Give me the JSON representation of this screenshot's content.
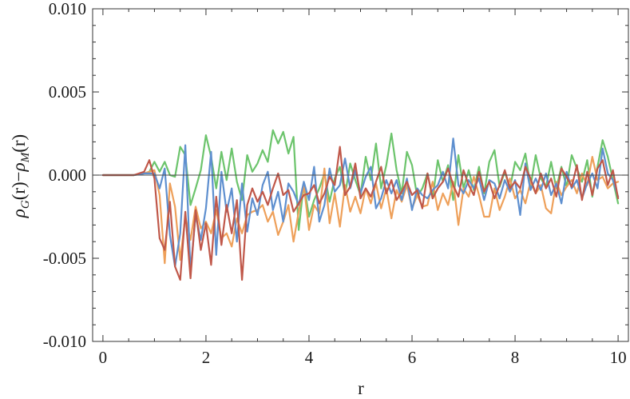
{
  "chart_data": {
    "type": "line",
    "xlabel": "r",
    "ylabel": {
      "rho": "ρ",
      "sub1": "G",
      "arg1": "(r)",
      "minus": "−",
      "sub2": "M",
      "arg2": "(r)"
    },
    "xlim": [
      -0.2,
      10.2
    ],
    "ylim": [
      -0.01,
      0.01
    ],
    "x_ticks": [
      "0",
      "2",
      "4",
      "6",
      "8",
      "10"
    ],
    "y_ticks": [
      "-0.010",
      "-0.005",
      "0.000",
      "0.005",
      "0.010"
    ],
    "zero_line": true,
    "grid": false,
    "legend": "none",
    "colors": {
      "blue": "#5e8fcf",
      "green": "#6cc46c",
      "orange": "#eea05a",
      "red": "#c0584a",
      "axis": "#333333",
      "zero": "#4a4a4a"
    },
    "series": [
      {
        "color": "#6cc46c",
        "x": [
          0,
          0.2,
          0.4,
          0.6,
          0.8,
          0.9,
          1.0,
          1.1,
          1.2,
          1.3,
          1.4,
          1.5,
          1.6,
          1.7,
          1.8,
          1.9,
          2.0,
          2.1,
          2.2,
          2.3,
          2.4,
          2.5,
          2.6,
          2.7,
          2.8,
          2.9,
          3.0,
          3.1,
          3.2,
          3.3,
          3.4,
          3.5,
          3.6,
          3.7,
          3.8,
          3.9,
          4.0,
          4.1,
          4.2,
          4.3,
          4.4,
          4.5,
          4.6,
          4.7,
          4.8,
          4.9,
          5.0,
          5.1,
          5.2,
          5.3,
          5.4,
          5.5,
          5.6,
          5.7,
          5.8,
          5.9,
          6.0,
          6.1,
          6.2,
          6.3,
          6.4,
          6.5,
          6.6,
          6.7,
          6.8,
          6.9,
          7.0,
          7.1,
          7.2,
          7.3,
          7.4,
          7.5,
          7.6,
          7.7,
          7.8,
          7.9,
          8.0,
          8.1,
          8.2,
          8.3,
          8.4,
          8.5,
          8.6,
          8.7,
          8.8,
          8.9,
          9.0,
          9.1,
          9.2,
          9.3,
          9.4,
          9.5,
          9.6,
          9.7,
          9.8,
          9.9,
          10.0
        ],
        "y": [
          0,
          0,
          0,
          0,
          0.0001,
          0.0002,
          0.0008,
          0.0002,
          0.0008,
          0,
          -0.0001,
          0.0017,
          0.0012,
          -0.0018,
          -0.0008,
          0.0003,
          0.0024,
          0.0011,
          -0.0008,
          0.0014,
          -0.0003,
          0.0016,
          -0.0004,
          -0.0015,
          0.0012,
          0.0002,
          0.0007,
          0.0015,
          0.0008,
          0.0027,
          0.0019,
          0.0026,
          0.0013,
          0.0023,
          -0.0033,
          -0.0005,
          -0.0025,
          -0.0015,
          -0.0008,
          0.0001,
          -0.0016,
          -0.0002,
          0.0005,
          -0.0012,
          0.0007,
          -0.0003,
          -0.0012,
          0.0011,
          -0.0003,
          0.0019,
          -0.0008,
          0.0006,
          0.0025,
          0.0003,
          -0.0011,
          0.0014,
          0.0006,
          -0.0013,
          -0.0008,
          0.0001,
          -0.0014,
          0.0009,
          -0.0004,
          0.0006,
          -0.0015,
          0.0012,
          -0.0008,
          0.0003,
          -0.0009,
          0.0005,
          -0.0011,
          0.0008,
          0.0015,
          -0.0007,
          0.0002,
          -0.0008,
          0.0008,
          0.0003,
          0.0013,
          -0.0007,
          0.0012,
          -0.0002,
          -0.0007,
          0.0008,
          -0.0008,
          0.0005,
          -0.0007,
          0.0012,
          0.0004,
          -0.0004,
          0.0009,
          -0.0013,
          0.0005,
          0.0021,
          0.0011,
          -0.0003,
          -0.0017
        ]
      },
      {
        "color": "#eea05a",
        "x": [
          0,
          0.2,
          0.4,
          0.6,
          0.8,
          0.9,
          1.0,
          1.1,
          1.2,
          1.3,
          1.4,
          1.5,
          1.6,
          1.7,
          1.8,
          1.9,
          2.0,
          2.1,
          2.2,
          2.3,
          2.4,
          2.5,
          2.6,
          2.7,
          2.8,
          2.9,
          3.0,
          3.1,
          3.2,
          3.3,
          3.4,
          3.5,
          3.6,
          3.7,
          3.8,
          3.9,
          4.0,
          4.1,
          4.2,
          4.3,
          4.4,
          4.5,
          4.6,
          4.7,
          4.8,
          4.9,
          5.0,
          5.1,
          5.2,
          5.3,
          5.4,
          5.5,
          5.6,
          5.7,
          5.8,
          5.9,
          6.0,
          6.1,
          6.2,
          6.3,
          6.4,
          6.5,
          6.6,
          6.7,
          6.8,
          6.9,
          7.0,
          7.1,
          7.2,
          7.3,
          7.4,
          7.5,
          7.6,
          7.7,
          7.8,
          7.9,
          8.0,
          8.1,
          8.2,
          8.3,
          8.4,
          8.5,
          8.6,
          8.7,
          8.8,
          8.9,
          9.0,
          9.1,
          9.2,
          9.3,
          9.4,
          9.5,
          9.6,
          9.7,
          9.8,
          9.9,
          10.0
        ],
        "y": [
          0,
          0,
          0,
          0,
          0.0001,
          0.0002,
          0.0003,
          -0.0012,
          -0.0053,
          -0.0005,
          -0.0019,
          -0.0051,
          -0.0025,
          -0.0039,
          -0.0019,
          -0.0032,
          -0.0028,
          -0.0035,
          -0.0021,
          -0.0038,
          -0.0035,
          -0.0043,
          -0.0026,
          -0.0035,
          -0.0024,
          -0.0022,
          -0.0021,
          -0.0018,
          -0.0028,
          -0.0022,
          -0.0036,
          -0.0028,
          -0.0018,
          -0.004,
          -0.0022,
          -0.0006,
          -0.0033,
          -0.0018,
          -0.0023,
          0.0004,
          -0.0029,
          -0.0011,
          -0.0031,
          -0.0006,
          -0.0022,
          -0.0013,
          -0.0023,
          -0.0008,
          -0.0017,
          -0.0005,
          -0.002,
          -0.0008,
          -0.0026,
          -0.0009,
          -0.0016,
          -0.0006,
          -0.002,
          -0.0012,
          -0.0019,
          -0.0018,
          -0.0004,
          -0.0021,
          -0.0011,
          -0.0018,
          -0.0004,
          -0.003,
          -0.0008,
          -0.0013,
          -0.0001,
          -0.0012,
          -0.0025,
          -0.0025,
          -0.0008,
          -0.0021,
          -0.0013,
          -0.0002,
          -0.0014,
          -0.0009,
          -0.0017,
          -0.0004,
          -0.0011,
          -0.0006,
          -0.002,
          -0.0023,
          -0.0004,
          -0.0012,
          -0.0007,
          -0.0003,
          -0.0011,
          0.0001,
          -0.0006,
          0.0011,
          -0.0003,
          -0.0001,
          -0.0008,
          -0.0005,
          -0.0004
        ]
      },
      {
        "color": "#5e8fcf",
        "x": [
          0,
          0.2,
          0.4,
          0.6,
          0.8,
          0.9,
          1.0,
          1.1,
          1.2,
          1.3,
          1.4,
          1.5,
          1.6,
          1.7,
          1.8,
          1.9,
          2.0,
          2.1,
          2.2,
          2.3,
          2.4,
          2.5,
          2.6,
          2.7,
          2.8,
          2.9,
          3.0,
          3.1,
          3.2,
          3.3,
          3.4,
          3.5,
          3.6,
          3.7,
          3.8,
          3.9,
          4.0,
          4.1,
          4.2,
          4.3,
          4.4,
          4.5,
          4.6,
          4.7,
          4.8,
          4.9,
          5.0,
          5.1,
          5.2,
          5.3,
          5.4,
          5.5,
          5.6,
          5.7,
          5.8,
          5.9,
          6.0,
          6.1,
          6.2,
          6.3,
          6.4,
          6.5,
          6.6,
          6.7,
          6.8,
          6.9,
          7.0,
          7.1,
          7.2,
          7.3,
          7.4,
          7.5,
          7.6,
          7.7,
          7.8,
          7.9,
          8.0,
          8.1,
          8.2,
          8.3,
          8.4,
          8.5,
          8.6,
          8.7,
          8.8,
          8.9,
          9.0,
          9.1,
          9.2,
          9.3,
          9.4,
          9.5,
          9.6,
          9.7,
          9.8,
          9.9,
          10.0
        ],
        "y": [
          0,
          0,
          0,
          0,
          0.0001,
          0.0001,
          0.0001,
          -0.0008,
          0.0004,
          -0.0036,
          -0.0055,
          -0.0035,
          0.0018,
          -0.0058,
          -0.0024,
          -0.0039,
          -0.002,
          0.0014,
          -0.0048,
          0.0002,
          -0.0022,
          -0.0008,
          -0.004,
          -0.0005,
          -0.0034,
          -0.0014,
          -0.0024,
          -0.0006,
          0.0002,
          -0.0021,
          -0.001,
          -0.0028,
          -0.0005,
          -0.001,
          -0.0018,
          -0.0004,
          -0.0015,
          0.0005,
          -0.0028,
          -0.0018,
          0.0004,
          -0.001,
          -0.0006,
          0.001,
          -0.0008,
          0.0003,
          -0.0011,
          -0.0001,
          0.0005,
          -0.002,
          -0.0014,
          -0.0003,
          -0.0011,
          -0.0003,
          -0.0015,
          -0.0002,
          -0.0021,
          -0.0008,
          -0.0012,
          -0.0014,
          -0.0009,
          -0.0006,
          0.0002,
          -0.0008,
          0.0022,
          -0.0006,
          -0.0011,
          -0.0003,
          -0.0008,
          -0.0002,
          -0.0015,
          -0.0003,
          -0.0005,
          -0.0014,
          -0.0003,
          -0.001,
          -0.0003,
          -0.0024,
          0.0007,
          -0.0009,
          -0.0002,
          -0.0009,
          0.0001,
          -0.0012,
          -0.0005,
          -0.0017,
          0.0002,
          -0.0008,
          -0.0003,
          -0.0014,
          -0.0005,
          0.0001,
          -0.0008,
          0.0016,
          0.0001,
          -0.0003,
          -0.0013
        ]
      },
      {
        "color": "#c0584a",
        "x": [
          0,
          0.2,
          0.4,
          0.6,
          0.8,
          0.9,
          1.0,
          1.1,
          1.2,
          1.3,
          1.4,
          1.5,
          1.6,
          1.7,
          1.8,
          1.9,
          2.0,
          2.1,
          2.2,
          2.3,
          2.4,
          2.5,
          2.6,
          2.7,
          2.8,
          2.9,
          3.0,
          3.1,
          3.2,
          3.3,
          3.4,
          3.5,
          3.6,
          3.7,
          3.8,
          3.9,
          4.0,
          4.1,
          4.2,
          4.3,
          4.4,
          4.5,
          4.6,
          4.7,
          4.8,
          4.9,
          5.0,
          5.1,
          5.2,
          5.3,
          5.4,
          5.5,
          5.6,
          5.7,
          5.8,
          5.9,
          6.0,
          6.1,
          6.2,
          6.3,
          6.4,
          6.5,
          6.6,
          6.7,
          6.8,
          6.9,
          7.0,
          7.1,
          7.2,
          7.3,
          7.4,
          7.5,
          7.6,
          7.7,
          7.8,
          7.9,
          8.0,
          8.1,
          8.2,
          8.3,
          8.4,
          8.5,
          8.6,
          8.7,
          8.8,
          8.9,
          9.0,
          9.1,
          9.2,
          9.3,
          9.4,
          9.5,
          9.6,
          9.7,
          9.8,
          9.9,
          10.0
        ],
        "y": [
          0,
          0,
          0,
          0,
          0.0002,
          0.0009,
          -0.0002,
          -0.0038,
          -0.0045,
          -0.0016,
          -0.0055,
          -0.0063,
          -0.0022,
          -0.0062,
          -0.0021,
          -0.0045,
          -0.0029,
          -0.0054,
          -0.0013,
          -0.0042,
          -0.0018,
          -0.0035,
          -0.0015,
          -0.0063,
          -0.0018,
          -0.0008,
          -0.0016,
          -0.001,
          -0.0018,
          -0.0008,
          0.0001,
          -0.0012,
          -0.0009,
          -0.0022,
          -0.0017,
          -0.0012,
          -0.0011,
          -0.0006,
          -0.0017,
          -0.0011,
          -0.0001,
          -0.0006,
          0.0017,
          -0.0012,
          -0.0007,
          0.0007,
          -0.0014,
          -0.0008,
          -0.0013,
          -0.0004,
          0.0005,
          -0.0011,
          -0.0003,
          -0.0015,
          -0.001,
          -0.0004,
          -0.0012,
          -0.0009,
          -0.002,
          0.0001,
          -0.0014,
          -0.0008,
          -0.0004,
          0.0004,
          -0.0006,
          -0.0013,
          0.0003,
          -0.0006,
          -0.0012,
          0.0002,
          -0.001,
          -0.0004,
          -0.0014,
          -0.0006,
          0.0003,
          -0.0008,
          -0.0004,
          -0.0008,
          0.0005,
          -0.0002,
          -0.0011,
          0.0001,
          -0.0008,
          -0.0002,
          -0.0013,
          0.0004,
          -0.0001,
          -0.0007,
          0.0006,
          -0.0015,
          0.0002,
          -0.0012,
          0.0004,
          0.0009,
          -0.0006,
          0.0003,
          -0.0014
        ]
      }
    ]
  }
}
